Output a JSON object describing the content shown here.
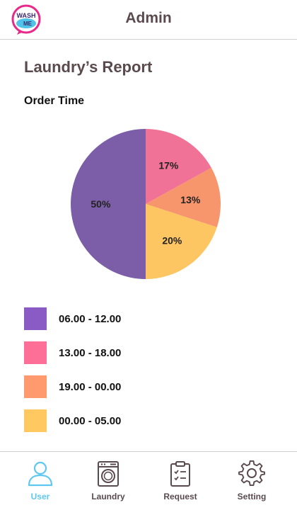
{
  "header": {
    "title": "Admin",
    "logo": {
      "text_top": "WASH",
      "text_bottom": "ME",
      "icon": "wash-me-logo"
    }
  },
  "report": {
    "title": "Laundry’s Report",
    "section_title": "Order Time"
  },
  "chart_data": {
    "type": "pie",
    "title": "Order Time",
    "categories": [
      "06.00 - 12.00",
      "13.00 - 18.00",
      "19.00 - 00.00",
      "00.00 - 05.00"
    ],
    "values": [
      50,
      17,
      13,
      20
    ],
    "labels": [
      "50%",
      "17%",
      "13%",
      "20%"
    ],
    "colors": [
      "#7b5ea7",
      "#f07296",
      "#f7956c",
      "#fdc663"
    ],
    "legend_colors": [
      "#8a5bc4",
      "#fd6f96",
      "#ff9a6e",
      "#ffc861"
    ],
    "legend_position": "bottom"
  },
  "nav": {
    "items": [
      {
        "label": "User",
        "icon": "user-icon",
        "active": true
      },
      {
        "label": "Laundry",
        "icon": "washing-machine-icon",
        "active": false
      },
      {
        "label": "Request",
        "icon": "clipboard-icon",
        "active": false
      },
      {
        "label": "Setting",
        "icon": "gear-icon",
        "active": false
      }
    ],
    "active_color": "#5ec8f0",
    "inactive_color": "#5a4a4e"
  }
}
